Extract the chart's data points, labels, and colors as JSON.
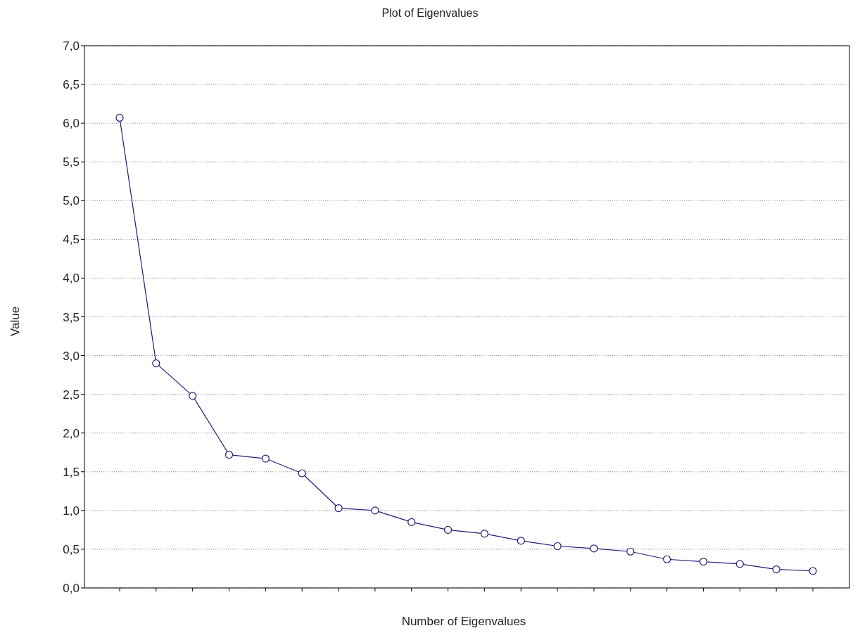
{
  "chart_data": {
    "type": "line",
    "title": "Plot of Eigenvalues",
    "xlabel": "Number of Eigenvalues",
    "ylabel": "Value",
    "categories": [
      null,
      null,
      null,
      null,
      null,
      null,
      null,
      null,
      null,
      null,
      null,
      null,
      null,
      null,
      null,
      null,
      null,
      null,
      null,
      null
    ],
    "series": [
      {
        "color": "#1c1c78",
        "values": [
          6.07,
          2.9,
          2.48,
          1.72,
          1.67,
          1.48,
          1.03,
          1.0,
          0.85,
          0.75,
          0.7,
          0.61,
          0.54,
          0.51,
          0.47,
          0.37,
          0.34,
          0.31,
          0.24,
          0.22
        ]
      }
    ],
    "ylim": [
      0,
      7
    ],
    "yticks": [
      {
        "value": 0,
        "label": "0,0"
      },
      {
        "value": 0.5,
        "label": "0,5"
      },
      {
        "value": 1,
        "label": "1,0"
      },
      {
        "value": 1.5,
        "label": "1,5"
      },
      {
        "value": 2,
        "label": "2,0"
      },
      {
        "value": 2.5,
        "label": "2,5"
      },
      {
        "value": 3,
        "label": "3,0"
      },
      {
        "value": 3.5,
        "label": "3,5"
      },
      {
        "value": 4,
        "label": "4,0"
      },
      {
        "value": 4.5,
        "label": "4,5"
      },
      {
        "value": 5,
        "label": "5,0"
      },
      {
        "value": 5.5,
        "label": "5,5"
      },
      {
        "value": 6,
        "label": "6,0"
      },
      {
        "value": 6.5,
        "label": "6,5"
      },
      {
        "value": 7,
        "label": "7,0"
      }
    ],
    "grid": "y",
    "marker": "circle",
    "line_style": "solid",
    "tick_labels": "y",
    "legend": false
  }
}
